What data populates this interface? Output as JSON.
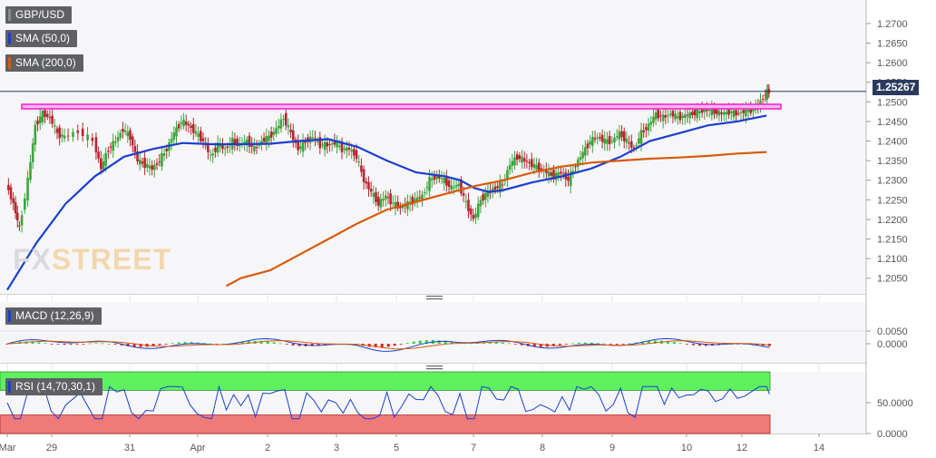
{
  "chart_data": {
    "type": "line",
    "symbol": "GBP/USD",
    "last_price": "1.25267",
    "watermark": {
      "prefix": "FX",
      "suffix": "STREET"
    },
    "x_tick_labels": [
      "Mar",
      "29",
      "31",
      "Apr",
      "2",
      "3",
      "5",
      "7",
      "8",
      "9",
      "10",
      "12",
      "14"
    ],
    "price_axis": {
      "ticks": [
        "1.2700",
        "1.2650",
        "1.2600",
        "1.2550",
        "1.2500",
        "1.2450",
        "1.2400",
        "1.2350",
        "1.2300",
        "1.2250",
        "1.2200",
        "1.2150",
        "1.2100",
        "1.2050"
      ],
      "range": [
        1.201,
        1.276
      ]
    },
    "resistance_level": 1.2488,
    "price_series": [
      [
        0,
        1.229
      ],
      [
        0.25,
        1.224
      ],
      [
        0.45,
        1.2175
      ],
      [
        0.75,
        1.23
      ],
      [
        1.0,
        1.244
      ],
      [
        1.25,
        1.247
      ],
      [
        1.5,
        1.246
      ],
      [
        1.75,
        1.242
      ],
      [
        2.0,
        1.241
      ],
      [
        2.5,
        1.2425
      ],
      [
        3.0,
        1.24
      ],
      [
        3.25,
        1.233
      ],
      [
        3.5,
        1.238
      ],
      [
        3.75,
        1.24
      ],
      [
        4.0,
        1.243
      ],
      [
        4.25,
        1.241
      ],
      [
        4.5,
        1.235
      ],
      [
        4.75,
        1.234
      ],
      [
        5.0,
        1.233
      ],
      [
        5.25,
        1.235
      ],
      [
        5.5,
        1.238
      ],
      [
        5.75,
        1.242
      ],
      [
        6.0,
        1.245
      ],
      [
        6.25,
        1.244
      ],
      [
        6.5,
        1.242
      ],
      [
        6.75,
        1.24
      ],
      [
        7.0,
        1.236
      ],
      [
        7.25,
        1.239
      ],
      [
        7.5,
        1.238
      ],
      [
        7.75,
        1.24
      ],
      [
        8.0,
        1.239
      ],
      [
        8.25,
        1.24
      ],
      [
        8.5,
        1.238
      ],
      [
        8.75,
        1.24
      ],
      [
        9.0,
        1.241
      ],
      [
        9.25,
        1.243
      ],
      [
        9.5,
        1.246
      ],
      [
        9.75,
        1.242
      ],
      [
        10.0,
        1.238
      ],
      [
        10.25,
        1.24
      ],
      [
        10.5,
        1.241
      ],
      [
        10.75,
        1.239
      ],
      [
        11.0,
        1.239
      ],
      [
        11.25,
        1.2395
      ],
      [
        11.5,
        1.238
      ],
      [
        11.75,
        1.238
      ],
      [
        12.0,
        1.236
      ],
      [
        12.25,
        1.23
      ],
      [
        12.5,
        1.227
      ],
      [
        12.75,
        1.224
      ],
      [
        13.0,
        1.226
      ],
      [
        13.25,
        1.224
      ],
      [
        13.5,
        1.223
      ],
      [
        13.75,
        1.224
      ],
      [
        14.0,
        1.225
      ],
      [
        14.25,
        1.226
      ],
      [
        14.5,
        1.23
      ],
      [
        14.75,
        1.231
      ],
      [
        15.0,
        1.23
      ],
      [
        15.25,
        1.228
      ],
      [
        15.5,
        1.229
      ],
      [
        15.75,
        1.224
      ],
      [
        16.0,
        1.22
      ],
      [
        16.25,
        1.225
      ],
      [
        16.5,
        1.227
      ],
      [
        16.75,
        1.228
      ],
      [
        17.0,
        1.229
      ],
      [
        17.25,
        1.234
      ],
      [
        17.5,
        1.236
      ],
      [
        17.75,
        1.235
      ],
      [
        18.0,
        1.234
      ],
      [
        18.25,
        1.233
      ],
      [
        18.5,
        1.232
      ],
      [
        18.75,
        1.231
      ],
      [
        19.0,
        1.232
      ],
      [
        19.25,
        1.23
      ],
      [
        19.5,
        1.234
      ],
      [
        19.75,
        1.237
      ],
      [
        20.0,
        1.24
      ],
      [
        20.25,
        1.241
      ],
      [
        20.5,
        1.24
      ],
      [
        20.75,
        1.24
      ],
      [
        21.0,
        1.242
      ],
      [
        21.25,
        1.24
      ],
      [
        21.5,
        1.238
      ],
      [
        21.75,
        1.242
      ],
      [
        22.0,
        1.244
      ],
      [
        22.25,
        1.247
      ],
      [
        22.5,
        1.246
      ],
      [
        22.75,
        1.247
      ],
      [
        23.0,
        1.246
      ],
      [
        23.25,
        1.2465
      ],
      [
        23.5,
        1.247
      ],
      [
        23.75,
        1.2475
      ],
      [
        24.0,
        1.248
      ],
      [
        24.25,
        1.2475
      ],
      [
        24.5,
        1.247
      ],
      [
        24.75,
        1.2475
      ],
      [
        25.0,
        1.247
      ],
      [
        25.25,
        1.2475
      ],
      [
        25.5,
        1.248
      ],
      [
        25.75,
        1.249
      ],
      [
        26.0,
        1.252
      ],
      [
        26.1,
        1.2527
      ]
    ],
    "series": [
      {
        "name": "SMA (50,0)",
        "color": "#1a3fd1",
        "points": [
          [
            0,
            1.202
          ],
          [
            1.0,
            1.214
          ],
          [
            2.0,
            1.224
          ],
          [
            3.0,
            1.231
          ],
          [
            4.0,
            1.236
          ],
          [
            5.0,
            1.238
          ],
          [
            6.0,
            1.2395
          ],
          [
            7.0,
            1.2392
          ],
          [
            8.0,
            1.2392
          ],
          [
            9.0,
            1.2393
          ],
          [
            10.0,
            1.24
          ],
          [
            11.0,
            1.2405
          ],
          [
            12.0,
            1.2385
          ],
          [
            13.0,
            1.235
          ],
          [
            14.0,
            1.232
          ],
          [
            15.0,
            1.231
          ],
          [
            15.5,
            1.23
          ],
          [
            16.0,
            1.228
          ],
          [
            16.5,
            1.227
          ],
          [
            17.0,
            1.2275
          ],
          [
            18.0,
            1.2295
          ],
          [
            19.0,
            1.231
          ],
          [
            20.0,
            1.233
          ],
          [
            21.0,
            1.236
          ],
          [
            22.0,
            1.24
          ],
          [
            23.0,
            1.242
          ],
          [
            24.0,
            1.244
          ],
          [
            25.0,
            1.245
          ],
          [
            26.0,
            1.2465
          ]
        ]
      },
      {
        "name": "SMA (200,0)",
        "color": "#d95a0c",
        "points": [
          [
            7.5,
            1.203
          ],
          [
            8.0,
            1.205
          ],
          [
            9.0,
            1.207
          ],
          [
            10.0,
            1.211
          ],
          [
            11.0,
            1.215
          ],
          [
            12.0,
            1.219
          ],
          [
            13.0,
            1.2225
          ],
          [
            14.0,
            1.2245
          ],
          [
            15.0,
            1.2265
          ],
          [
            16.0,
            1.2285
          ],
          [
            17.0,
            1.23
          ],
          [
            18.0,
            1.232
          ],
          [
            19.0,
            1.2335
          ],
          [
            20.0,
            1.2345
          ],
          [
            21.0,
            1.235
          ],
          [
            22.0,
            1.2355
          ],
          [
            23.0,
            1.2358
          ],
          [
            24.0,
            1.2362
          ],
          [
            25.0,
            1.2368
          ],
          [
            26.0,
            1.2372
          ]
        ]
      }
    ],
    "macd": {
      "label": "MACD (12,26,9)",
      "ticks": [
        "0.0050",
        "0.0000"
      ]
    },
    "rsi": {
      "label": "RSI (14,70,30,1)",
      "ticks": [
        "50.0000",
        "0.0000"
      ]
    }
  }
}
